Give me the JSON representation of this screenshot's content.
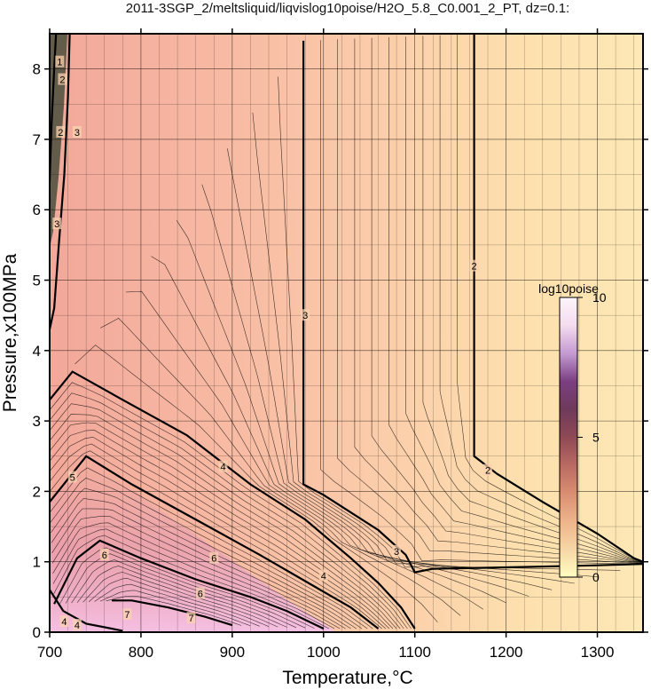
{
  "chart_data": {
    "type": "heatmap",
    "title": "2011-3SGP_2/meltsliquid/liqvislog10poise/H2O_5.8_C0.001_2_PT, dz=0.1:",
    "xlabel": "Temperature,°C",
    "ylabel": "Pressure,x100MPa",
    "xlim": [
      700,
      1350
    ],
    "ylim": [
      0,
      8.5
    ],
    "xticks": [
      700,
      800,
      900,
      1000,
      1100,
      1200,
      1300
    ],
    "yticks": [
      0,
      1,
      2,
      3,
      4,
      5,
      6,
      7,
      8
    ],
    "x_minor_step": 20,
    "y_minor_step": 0.5,
    "grid": true,
    "colorbar": {
      "label": "log10poise",
      "ticks": [
        0,
        5,
        10
      ],
      "range": [
        0,
        10
      ],
      "colors": [
        "#fefdc2",
        "#f7d6a6",
        "#eeb48c",
        "#d98e72",
        "#b96a62",
        "#8e4a55",
        "#6e3a5a",
        "#7a3f82",
        "#c49bd2",
        "#f3dcef",
        "#fdf5fb"
      ]
    },
    "contour_labels": [
      {
        "value": "2",
        "x": 1165,
        "y": 5.2
      },
      {
        "value": "2",
        "x": 1180,
        "y": 2.3
      },
      {
        "value": "3",
        "x": 980,
        "y": 4.5
      },
      {
        "value": "3",
        "x": 1080,
        "y": 1.15
      },
      {
        "value": "3",
        "x": 708,
        "y": 5.8
      },
      {
        "value": "4",
        "x": 890,
        "y": 2.35
      },
      {
        "value": "4",
        "x": 1000,
        "y": 0.8
      },
      {
        "value": "5",
        "x": 725,
        "y": 2.2
      },
      {
        "value": "6",
        "x": 760,
        "y": 1.1
      },
      {
        "value": "6",
        "x": 880,
        "y": 1.05
      },
      {
        "value": "6",
        "x": 865,
        "y": 0.55
      },
      {
        "value": "7",
        "x": 785,
        "y": 0.25
      },
      {
        "value": "7",
        "x": 855,
        "y": 0.2
      },
      {
        "value": "2",
        "x": 714,
        "y": 7.85
      },
      {
        "value": "2",
        "x": 712,
        "y": 7.1
      },
      {
        "value": "3",
        "x": 730,
        "y": 7.1
      },
      {
        "value": "1",
        "x": 711,
        "y": 8.1
      },
      {
        "value": "4",
        "x": 716,
        "y": 0.15
      },
      {
        "value": "4",
        "x": 730,
        "y": 0.1
      }
    ],
    "contours": [
      {
        "level": 2,
        "major": true,
        "points": [
          [
            1165,
            8.5
          ],
          [
            1165,
            2.5
          ],
          [
            1190,
            2.25
          ],
          [
            1240,
            1.85
          ],
          [
            1300,
            1.4
          ],
          [
            1340,
            1.05
          ],
          [
            1350,
            1.0
          ]
        ]
      },
      {
        "level": 3,
        "major": true,
        "points": [
          [
            978,
            8.4
          ],
          [
            978,
            2.1
          ],
          [
            1000,
            1.95
          ],
          [
            1060,
            1.45
          ],
          [
            1090,
            1.1
          ],
          [
            1100,
            0.85
          ],
          [
            1120,
            0.9
          ],
          [
            1200,
            0.92
          ],
          [
            1300,
            0.95
          ],
          [
            1350,
            0.97
          ]
        ]
      },
      {
        "level": 3,
        "major": true,
        "points": [
          [
            722,
            8.5
          ],
          [
            720,
            7.6
          ],
          [
            716,
            6.5
          ],
          [
            710,
            5.5
          ],
          [
            705,
            4.6
          ],
          [
            700,
            4.3
          ]
        ]
      },
      {
        "level": 4,
        "major": true,
        "points": [
          [
            700,
            3.3
          ],
          [
            725,
            3.7
          ],
          [
            780,
            3.3
          ],
          [
            850,
            2.8
          ],
          [
            920,
            2.1
          ],
          [
            980,
            1.6
          ],
          [
            1030,
            1.05
          ],
          [
            1060,
            0.7
          ],
          [
            1085,
            0.35
          ],
          [
            1100,
            0.05
          ]
        ]
      },
      {
        "level": 5,
        "major": true,
        "points": [
          [
            700,
            1.85
          ],
          [
            740,
            2.5
          ],
          [
            790,
            2.1
          ],
          [
            860,
            1.6
          ],
          [
            930,
            1.1
          ],
          [
            990,
            0.65
          ],
          [
            1030,
            0.35
          ],
          [
            1060,
            0.05
          ]
        ]
      },
      {
        "level": 6,
        "major": true,
        "points": [
          [
            705,
            0.4
          ],
          [
            730,
            1.05
          ],
          [
            755,
            1.3
          ],
          [
            800,
            1.05
          ],
          [
            860,
            0.75
          ],
          [
            920,
            0.5
          ],
          [
            960,
            0.3
          ],
          [
            1000,
            0.05
          ]
        ]
      },
      {
        "level": 7,
        "major": true,
        "points": [
          [
            768,
            0.45
          ],
          [
            790,
            0.45
          ],
          [
            830,
            0.35
          ],
          [
            870,
            0.22
          ],
          [
            900,
            0.1
          ]
        ]
      },
      {
        "level": 4,
        "major": true,
        "points": [
          [
            700,
            0.6
          ],
          [
            715,
            0.3
          ],
          [
            740,
            0.12
          ],
          [
            780,
            0.02
          ]
        ]
      },
      {
        "level": 2,
        "major": true,
        "points": [
          [
            700,
            6.4
          ],
          [
            702,
            7.2
          ],
          [
            705,
            8.0
          ],
          [
            707,
            8.5
          ]
        ]
      }
    ]
  }
}
